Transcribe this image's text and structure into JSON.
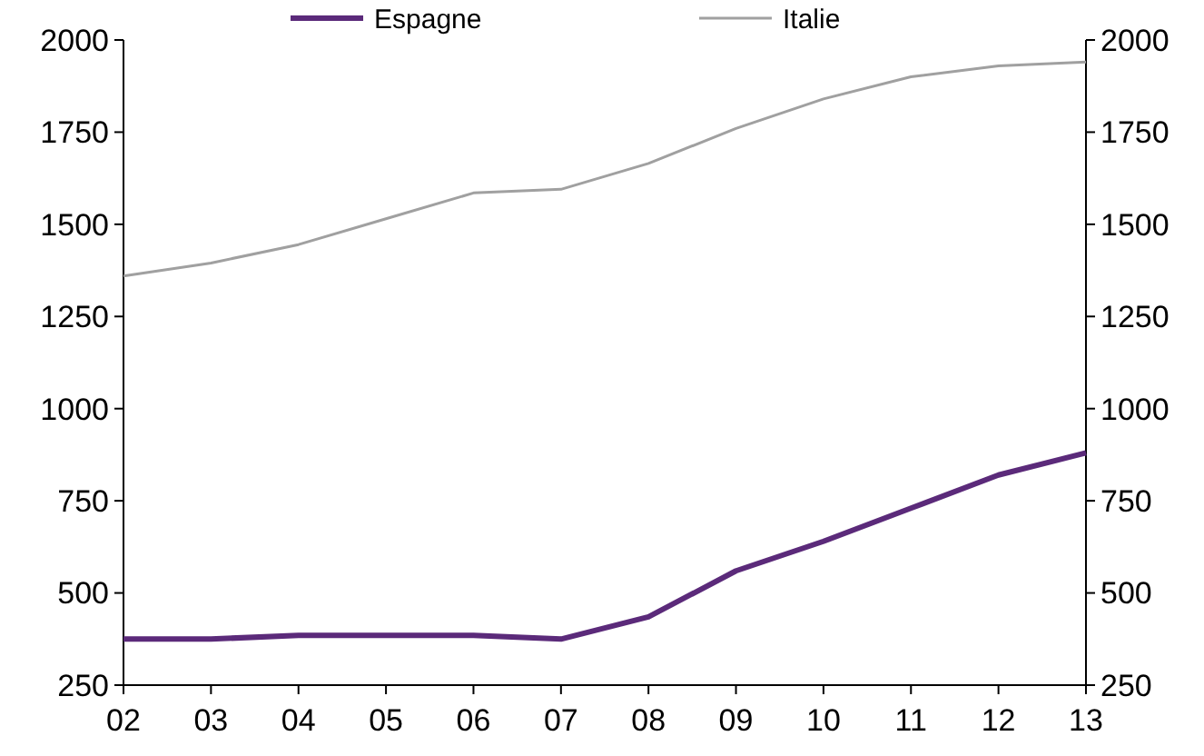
{
  "chart_data": {
    "type": "line",
    "categories": [
      "02",
      "03",
      "04",
      "05",
      "06",
      "07",
      "08",
      "09",
      "10",
      "11",
      "12",
      "13"
    ],
    "series": [
      {
        "name": "Espagne",
        "color": "#5b2a7a",
        "values": [
          375,
          375,
          385,
          385,
          385,
          375,
          435,
          560,
          640,
          730,
          820,
          880
        ]
      },
      {
        "name": "Italie",
        "color": "#a0a0a0",
        "values": [
          1360,
          1395,
          1445,
          1515,
          1585,
          1595,
          1665,
          1760,
          1840,
          1900,
          1930,
          1940
        ]
      }
    ],
    "ylim": [
      250,
      2000
    ],
    "yticks": [
      250,
      500,
      750,
      1000,
      1250,
      1500,
      1750,
      2000
    ],
    "y2lim": [
      250,
      2000
    ],
    "y2ticks": [
      250,
      500,
      750,
      1000,
      1250,
      1500,
      1750,
      2000
    ],
    "legend": "top",
    "grid": false,
    "marker": "none",
    "line_style": "solid"
  }
}
